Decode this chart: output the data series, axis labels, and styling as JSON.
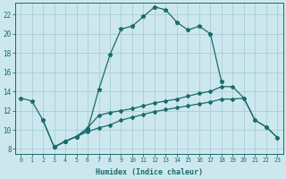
{
  "xlabel": "Humidex (Indice chaleur)",
  "bg_color": "#cce8ee",
  "grid_color": "#aacdd6",
  "line_color": "#1a6b6b",
  "x_ticks": [
    0,
    1,
    2,
    3,
    4,
    5,
    6,
    7,
    8,
    9,
    10,
    11,
    12,
    13,
    14,
    15,
    16,
    17,
    18,
    19,
    20,
    21,
    22,
    23
  ],
  "y_ticks": [
    8,
    10,
    12,
    14,
    16,
    18,
    20,
    22
  ],
  "xlim": [
    -0.5,
    23.5
  ],
  "ylim": [
    7.5,
    23.2
  ],
  "line1_x": [
    0,
    1,
    2,
    3,
    4,
    5,
    6,
    7,
    8,
    9,
    10,
    11,
    12,
    13,
    14,
    15,
    16,
    17,
    18
  ],
  "line1_y": [
    13.3,
    13.0,
    11.0,
    8.2,
    8.8,
    9.3,
    10.0,
    14.2,
    17.8,
    20.5,
    20.8,
    21.8,
    22.8,
    22.5,
    21.2,
    20.4,
    20.8,
    20.0,
    15.0
  ],
  "line2_x": [
    2,
    3,
    4,
    5,
    6,
    7,
    8,
    9,
    10,
    11,
    12,
    13,
    14,
    15,
    16,
    17,
    18,
    19,
    20,
    21,
    22,
    23
  ],
  "line2_y": [
    11.0,
    8.2,
    8.8,
    9.3,
    10.2,
    11.5,
    11.8,
    12.0,
    12.2,
    12.5,
    12.8,
    13.0,
    13.2,
    13.5,
    13.8,
    14.0,
    14.5,
    14.5,
    13.3,
    11.0,
    10.3,
    9.2
  ],
  "line3_x": [
    3,
    4,
    5,
    6,
    7,
    8,
    9,
    10,
    11,
    12,
    13,
    14,
    15,
    16,
    17,
    18,
    19,
    20,
    21,
    22,
    23
  ],
  "line3_y": [
    8.2,
    8.8,
    9.3,
    9.8,
    10.2,
    10.5,
    11.0,
    11.3,
    11.6,
    11.9,
    12.1,
    12.3,
    12.5,
    12.7,
    12.9,
    13.2,
    13.2,
    13.3,
    11.0,
    10.3,
    9.2
  ]
}
